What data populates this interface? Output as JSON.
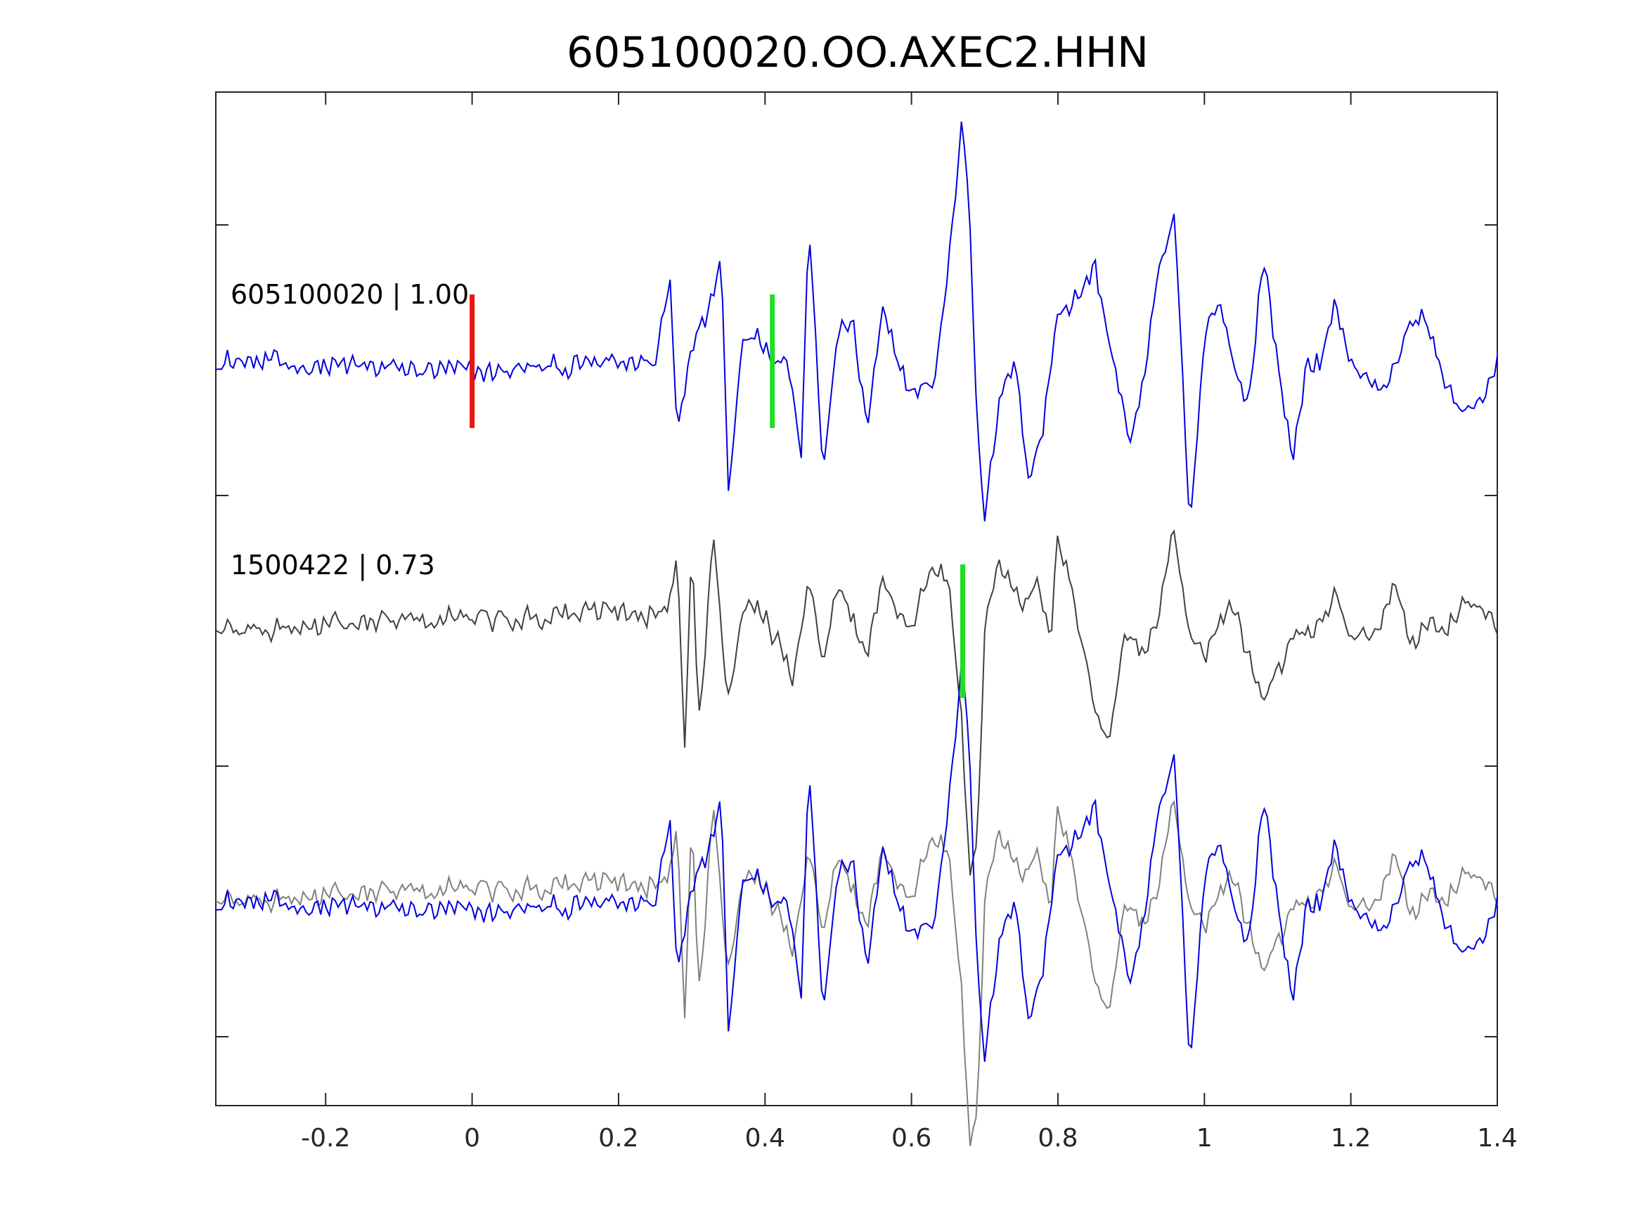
{
  "chart_data": {
    "type": "line",
    "title": "605100020.OO.AXEC2.HHN",
    "xlabel": "",
    "ylabel": "",
    "xlim": [
      -0.35,
      1.4
    ],
    "x_ticks": [
      "-0.2",
      "0",
      "0.2",
      "0.4",
      "0.6",
      "0.8",
      "1",
      "1.2",
      "1.4"
    ],
    "x_tick_values": [
      -0.2,
      0,
      0.2,
      0.4,
      0.6,
      0.8,
      1.0,
      1.2,
      1.4
    ],
    "grid": false,
    "traces": [
      {
        "label": "605100020 | 1.00",
        "offset": 2,
        "color": "#0000dd",
        "picks": [
          {
            "x": 0.0,
            "color": "#ee1111"
          },
          {
            "x": 0.41,
            "color": "#22dd22"
          }
        ]
      },
      {
        "label": "1500422 | 0.73",
        "offset": 1,
        "color": "#404040",
        "picks": [
          {
            "x": 0.67,
            "color": "#22dd22"
          }
        ]
      },
      {
        "label": "",
        "offset": 0,
        "overlay": true,
        "colors": [
          "#808080",
          "#0000dd"
        ]
      }
    ],
    "waveform_keypoints": {
      "upper_trace": [
        [
          -0.35,
          0.0
        ],
        [
          0.0,
          -0.05
        ],
        [
          0.25,
          0.0
        ],
        [
          0.27,
          0.37
        ],
        [
          0.28,
          -0.3
        ],
        [
          0.3,
          0.1
        ],
        [
          0.32,
          0.2
        ],
        [
          0.34,
          0.5
        ],
        [
          0.35,
          -0.55
        ],
        [
          0.37,
          0.1
        ],
        [
          0.39,
          0.15
        ],
        [
          0.41,
          0.0
        ],
        [
          0.43,
          0.0
        ],
        [
          0.45,
          -0.4
        ],
        [
          0.46,
          0.6
        ],
        [
          0.48,
          -0.5
        ],
        [
          0.5,
          0.15
        ],
        [
          0.52,
          0.15
        ],
        [
          0.54,
          -0.3
        ],
        [
          0.56,
          0.2
        ],
        [
          0.6,
          -0.15
        ],
        [
          0.63,
          -0.1
        ],
        [
          0.64,
          0.15
        ],
        [
          0.65,
          0.4
        ],
        [
          0.67,
          1.1
        ],
        [
          0.68,
          0.6
        ],
        [
          0.69,
          -0.3
        ],
        [
          0.7,
          -0.65
        ],
        [
          0.72,
          -0.2
        ],
        [
          0.74,
          0.0
        ],
        [
          0.76,
          -0.5
        ],
        [
          0.78,
          -0.3
        ],
        [
          0.8,
          0.25
        ],
        [
          0.82,
          0.25
        ],
        [
          0.85,
          0.42
        ],
        [
          0.87,
          0.1
        ],
        [
          0.9,
          -0.4
        ],
        [
          0.92,
          0.0
        ],
        [
          0.94,
          0.45
        ],
        [
          0.96,
          0.65
        ],
        [
          0.98,
          -0.8
        ],
        [
          1.0,
          0.1
        ],
        [
          1.02,
          0.25
        ],
        [
          1.04,
          0.0
        ],
        [
          1.06,
          -0.2
        ],
        [
          1.08,
          0.48
        ],
        [
          1.1,
          0.0
        ],
        [
          1.12,
          -0.45
        ],
        [
          1.14,
          0.0
        ],
        [
          1.16,
          0.0
        ],
        [
          1.18,
          0.25
        ],
        [
          1.2,
          0.0
        ],
        [
          1.24,
          -0.15
        ],
        [
          1.28,
          0.15
        ],
        [
          1.3,
          0.2
        ],
        [
          1.32,
          0.0
        ],
        [
          1.35,
          -0.25
        ],
        [
          1.38,
          -0.15
        ],
        [
          1.4,
          0.0
        ]
      ],
      "lower_trace": [
        [
          -0.35,
          0.0
        ],
        [
          0.27,
          0.1
        ],
        [
          0.28,
          0.38
        ],
        [
          0.29,
          -0.55
        ],
        [
          0.3,
          0.4
        ],
        [
          0.31,
          -0.4
        ],
        [
          0.33,
          0.45
        ],
        [
          0.35,
          -0.3
        ],
        [
          0.37,
          0.15
        ],
        [
          0.4,
          0.08
        ],
        [
          0.44,
          -0.2
        ],
        [
          0.46,
          0.2
        ],
        [
          0.48,
          -0.1
        ],
        [
          0.5,
          0.2
        ],
        [
          0.54,
          -0.1
        ],
        [
          0.56,
          0.25
        ],
        [
          0.6,
          0.0
        ],
        [
          0.63,
          0.3
        ],
        [
          0.65,
          0.25
        ],
        [
          0.66,
          -0.05
        ],
        [
          0.67,
          -0.45
        ],
        [
          0.68,
          -1.15
        ],
        [
          0.69,
          -0.9
        ],
        [
          0.7,
          0.0
        ],
        [
          0.72,
          0.3
        ],
        [
          0.75,
          0.1
        ],
        [
          0.77,
          0.2
        ],
        [
          0.79,
          0.0
        ],
        [
          0.8,
          0.45
        ],
        [
          0.82,
          0.15
        ],
        [
          0.85,
          -0.35
        ],
        [
          0.87,
          -0.5
        ],
        [
          0.89,
          0.0
        ],
        [
          0.92,
          -0.1
        ],
        [
          0.94,
          0.15
        ],
        [
          0.96,
          0.45
        ],
        [
          0.98,
          -0.05
        ],
        [
          1.0,
          -0.1
        ],
        [
          1.04,
          0.1
        ],
        [
          1.08,
          -0.3
        ],
        [
          1.12,
          -0.05
        ],
        [
          1.15,
          0.0
        ],
        [
          1.18,
          0.15
        ],
        [
          1.2,
          -0.05
        ],
        [
          1.24,
          0.05
        ],
        [
          1.26,
          0.2
        ],
        [
          1.28,
          -0.05
        ],
        [
          1.3,
          0.0
        ],
        [
          1.34,
          0.05
        ],
        [
          1.36,
          0.15
        ],
        [
          1.4,
          0.0
        ]
      ]
    }
  }
}
